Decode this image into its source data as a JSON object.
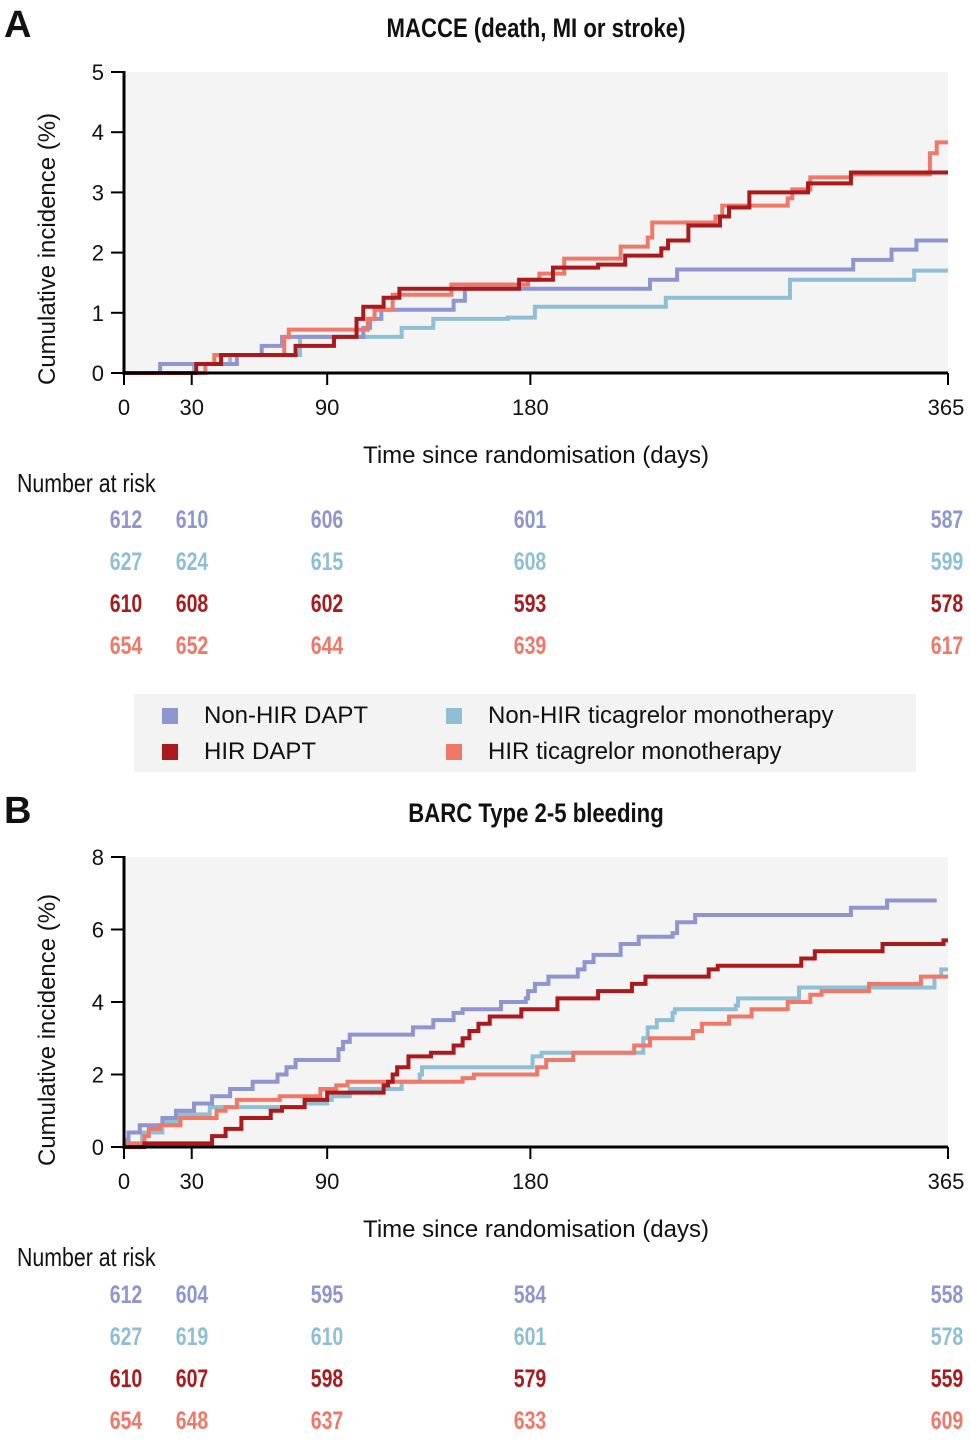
{
  "legend": {
    "items": [
      {
        "label": "Non-HIR DAPT",
        "color": "#8f95cf"
      },
      {
        "label": "Non-HIR ticagrelor monotherapy",
        "color": "#8fbfd4"
      },
      {
        "label": "HIR DAPT",
        "color": "#aa1a1c"
      },
      {
        "label": "HIR ticagrelor monotherapy",
        "color": "#f07868"
      }
    ]
  },
  "chart_data": [
    {
      "panel": "A",
      "type": "line",
      "step": true,
      "title": "MACCE (death, MI or stroke)",
      "xlabel": "Time since randomisation (days)",
      "ylabel": "Cumulative incidence (%)",
      "xlim": [
        0,
        365
      ],
      "ylim": [
        0,
        5
      ],
      "xticks": [
        0,
        30,
        90,
        180,
        365
      ],
      "yticks": [
        0,
        1,
        2,
        3,
        4,
        5
      ],
      "grid": false,
      "series": [
        {
          "name": "Non-HIR DAPT",
          "color": "#8f95cf",
          "x": [
            0,
            16,
            50,
            61,
            70,
            106,
            109,
            114,
            146,
            151,
            233,
            245,
            323,
            340,
            351,
            365
          ],
          "y": [
            0,
            0.15,
            0.3,
            0.45,
            0.6,
            0.75,
            0.9,
            1.05,
            1.2,
            1.4,
            1.55,
            1.72,
            1.88,
            2.05,
            2.2,
            2.2
          ]
        },
        {
          "name": "Non-HIR ticagrelor monotherapy",
          "color": "#8fbfd4",
          "x": [
            0,
            31,
            47,
            78,
            123,
            137,
            170,
            182,
            240,
            295,
            350,
            365
          ],
          "y": [
            0,
            0.15,
            0.3,
            0.6,
            0.75,
            0.9,
            0.92,
            1.1,
            1.25,
            1.55,
            1.7,
            1.7
          ]
        },
        {
          "name": "HIR DAPT",
          "color": "#aa1a1c",
          "x": [
            0,
            32,
            43,
            76,
            93,
            103,
            106,
            115,
            122,
            175,
            190,
            210,
            222,
            238,
            241,
            250,
            264,
            268,
            277,
            303,
            322,
            365
          ],
          "y": [
            0,
            0.15,
            0.3,
            0.45,
            0.6,
            0.9,
            1.1,
            1.25,
            1.4,
            1.55,
            1.75,
            1.8,
            1.95,
            2.07,
            2.2,
            2.45,
            2.6,
            2.75,
            3.0,
            3.15,
            3.33,
            3.33
          ]
        },
        {
          "name": "HIR ticagrelor monotherapy",
          "color": "#f07868",
          "x": [
            0,
            36,
            40,
            71,
            73,
            108,
            111,
            119,
            145,
            179,
            184,
            195,
            220,
            232,
            234,
            262,
            265,
            294,
            296,
            304,
            322,
            357,
            360,
            365
          ],
          "y": [
            0,
            0.15,
            0.3,
            0.6,
            0.72,
            0.9,
            1.05,
            1.3,
            1.47,
            1.55,
            1.65,
            1.9,
            2.1,
            2.25,
            2.5,
            2.6,
            2.78,
            2.9,
            3.05,
            3.25,
            3.3,
            3.65,
            3.83,
            3.83
          ]
        }
      ],
      "number_at_risk": {
        "label": "Number at risk",
        "timepoints": [
          0,
          30,
          90,
          180,
          365
        ],
        "rows": [
          {
            "name": "Non-HIR DAPT",
            "values": [
              "612",
              "610",
              "606",
              "601",
              "587"
            ]
          },
          {
            "name": "Non-HIR ticagrelor monotherapy",
            "values": [
              "627",
              "624",
              "615",
              "608",
              "599"
            ]
          },
          {
            "name": "HIR DAPT",
            "values": [
              "610",
              "608",
              "602",
              "593",
              "578"
            ]
          },
          {
            "name": "HIR ticagrelor monotherapy",
            "values": [
              "654",
              "652",
              "644",
              "639",
              "617"
            ]
          }
        ]
      }
    },
    {
      "panel": "B",
      "type": "line",
      "step": true,
      "title": "BARC Type 2-5 bleeding",
      "xlabel": "Time since randomisation (days)",
      "ylabel": "Cumulative incidence (%)",
      "xlim": [
        0,
        365
      ],
      "ylim": [
        0,
        8
      ],
      "xticks": [
        0,
        30,
        90,
        180,
        365
      ],
      "yticks": [
        0,
        2,
        4,
        6,
        8
      ],
      "grid": false,
      "series": [
        {
          "name": "Non-HIR DAPT",
          "color": "#8f95cf",
          "x": [
            0,
            2,
            7,
            17,
            23,
            31,
            39,
            47,
            57,
            68,
            72,
            76,
            95,
            97,
            100,
            128,
            137,
            146,
            150,
            164,
            167,
            178,
            179,
            182,
            188,
            201,
            204,
            208,
            217,
            220,
            228,
            243,
            245,
            253,
            258,
            265,
            322,
            338,
            360
          ],
          "y": [
            0.2,
            0.4,
            0.6,
            0.8,
            1.0,
            1.2,
            1.4,
            1.6,
            1.8,
            2.0,
            2.2,
            2.4,
            2.7,
            2.9,
            3.1,
            3.3,
            3.5,
            3.7,
            3.8,
            3.8,
            4.0,
            4.1,
            4.3,
            4.5,
            4.7,
            4.9,
            5.1,
            5.3,
            5.3,
            5.6,
            5.8,
            5.9,
            6.2,
            6.4,
            6.4,
            6.4,
            6.6,
            6.8,
            6.8
          ]
        },
        {
          "name": "Non-HIR ticagrelor monotherapy",
          "color": "#8fbfd4",
          "x": [
            0,
            8,
            17,
            24,
            38,
            42,
            50,
            80,
            90,
            92,
            100,
            123,
            131,
            132,
            149,
            181,
            185,
            230,
            232,
            236,
            243,
            244,
            255,
            271,
            272,
            299,
            308,
            359,
            362,
            365
          ],
          "y": [
            0.1,
            0.4,
            0.7,
            0.9,
            1.1,
            1.1,
            1.1,
            1.2,
            1.3,
            1.4,
            1.6,
            1.8,
            2.0,
            2.2,
            2.2,
            2.5,
            2.6,
            3.0,
            3.3,
            3.5,
            3.7,
            3.8,
            3.8,
            3.9,
            4.1,
            4.4,
            4.4,
            4.7,
            4.9,
            4.9
          ]
        },
        {
          "name": "HIR DAPT",
          "color": "#aa1a1c",
          "x": [
            0,
            9,
            39,
            45,
            52,
            65,
            70,
            80,
            90,
            115,
            117,
            119,
            121,
            126,
            136,
            146,
            150,
            153,
            157,
            162,
            176,
            192,
            195,
            200,
            210,
            225,
            231,
            259,
            263,
            300,
            306,
            336,
            350,
            363,
            365
          ],
          "y": [
            0,
            0.1,
            0.3,
            0.5,
            0.8,
            1.0,
            1.1,
            1.3,
            1.5,
            1.7,
            1.8,
            2.0,
            2.2,
            2.5,
            2.6,
            2.8,
            3.0,
            3.2,
            3.4,
            3.6,
            3.8,
            4.1,
            4.1,
            4.1,
            4.3,
            4.5,
            4.7,
            4.9,
            5.0,
            5.2,
            5.4,
            5.6,
            5.6,
            5.7,
            5.7
          ]
        },
        {
          "name": "HIR ticagrelor monotherapy",
          "color": "#f07868",
          "x": [
            0,
            9,
            11,
            16,
            25,
            41,
            45,
            50,
            69,
            87,
            94,
            99,
            150,
            155,
            183,
            187,
            199,
            226,
            233,
            252,
            256,
            268,
            278,
            294,
            304,
            309,
            330,
            344,
            353,
            365
          ],
          "y": [
            0.1,
            0.3,
            0.5,
            0.6,
            0.8,
            1.0,
            1.1,
            1.3,
            1.4,
            1.6,
            1.7,
            1.8,
            1.9,
            2.0,
            2.2,
            2.4,
            2.6,
            2.8,
            3.0,
            3.2,
            3.4,
            3.6,
            3.8,
            4.0,
            4.2,
            4.3,
            4.5,
            4.5,
            4.7,
            4.7
          ]
        }
      ],
      "number_at_risk": {
        "label": "Number at risk",
        "timepoints": [
          0,
          30,
          90,
          180,
          365
        ],
        "rows": [
          {
            "name": "Non-HIR DAPT",
            "values": [
              "612",
              "604",
              "595",
              "584",
              "558"
            ]
          },
          {
            "name": "Non-HIR ticagrelor monotherapy",
            "values": [
              "627",
              "619",
              "610",
              "601",
              "578"
            ]
          },
          {
            "name": "HIR DAPT",
            "values": [
              "610",
              "607",
              "598",
              "579",
              "559"
            ]
          },
          {
            "name": "HIR ticagrelor monotherapy",
            "values": [
              "654",
              "648",
              "637",
              "633",
              "609"
            ]
          }
        ]
      }
    }
  ]
}
